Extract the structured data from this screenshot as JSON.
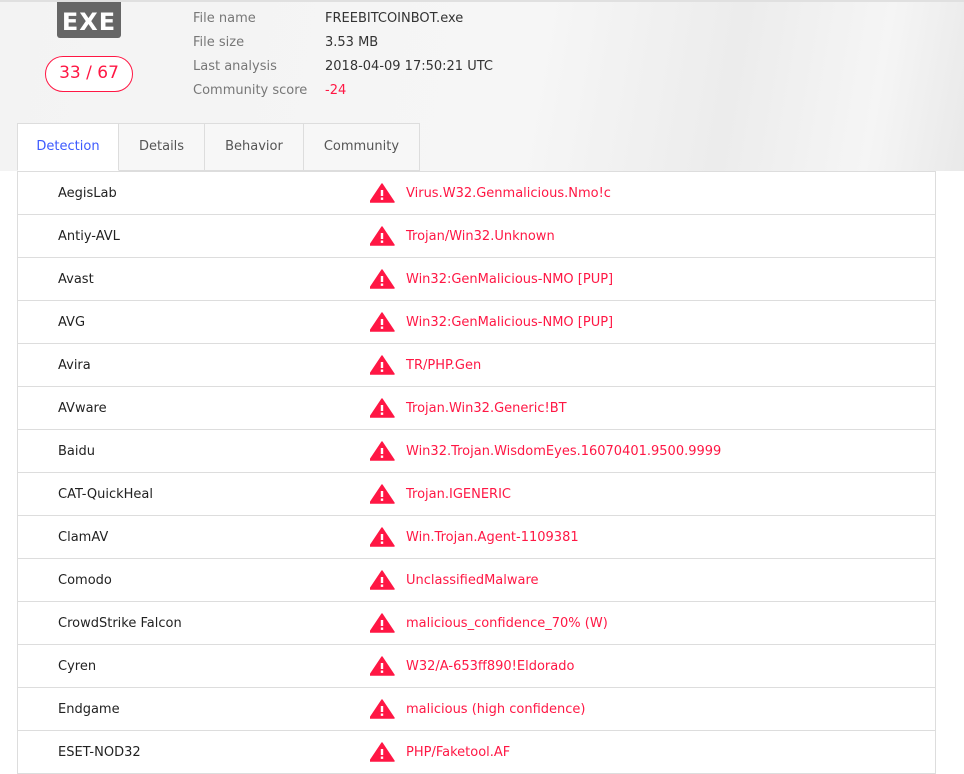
{
  "file": {
    "icon_label": "EXE",
    "score": "33 / 67",
    "meta": [
      {
        "key": "File name",
        "value": "FREEBITCOINBOT.exe"
      },
      {
        "key": "File size",
        "value": "3.53 MB"
      },
      {
        "key": "Last analysis",
        "value": "2018-04-09 17:50:21 UTC"
      },
      {
        "key": "Community score",
        "value": "-24"
      }
    ]
  },
  "tabs": [
    "Detection",
    "Details",
    "Behavior",
    "Community"
  ],
  "colors": {
    "malicious": "#ff1744",
    "active_tab": "#3d5afe"
  },
  "detections": [
    {
      "engine": "AegisLab",
      "result": "Virus.W32.Genmalicious.Nmo!c"
    },
    {
      "engine": "Antiy-AVL",
      "result": "Trojan/Win32.Unknown"
    },
    {
      "engine": "Avast",
      "result": "Win32:GenMalicious-NMO [PUP]"
    },
    {
      "engine": "AVG",
      "result": "Win32:GenMalicious-NMO [PUP]"
    },
    {
      "engine": "Avira",
      "result": "TR/PHP.Gen"
    },
    {
      "engine": "AVware",
      "result": "Trojan.Win32.Generic!BT"
    },
    {
      "engine": "Baidu",
      "result": "Win32.Trojan.WisdomEyes.16070401.9500.9999"
    },
    {
      "engine": "CAT-QuickHeal",
      "result": "Trojan.IGENERIC"
    },
    {
      "engine": "ClamAV",
      "result": "Win.Trojan.Agent-1109381"
    },
    {
      "engine": "Comodo",
      "result": "UnclassifiedMalware"
    },
    {
      "engine": "CrowdStrike Falcon",
      "result": "malicious_confidence_70% (W)"
    },
    {
      "engine": "Cyren",
      "result": "W32/A-653ff890!Eldorado"
    },
    {
      "engine": "Endgame",
      "result": "malicious (high confidence)"
    },
    {
      "engine": "ESET-NOD32",
      "result": "PHP/Faketool.AF"
    }
  ]
}
